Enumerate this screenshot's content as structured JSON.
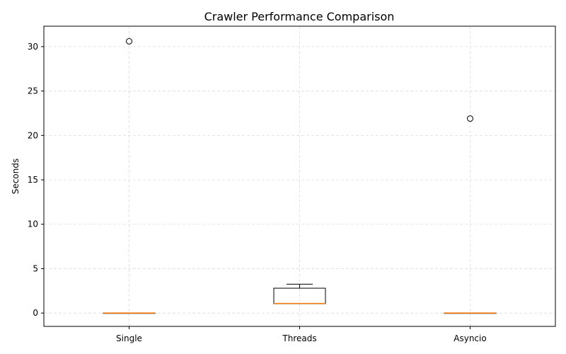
{
  "chart_data": {
    "type": "box",
    "title": "Crawler Performance Comparison",
    "xlabel": "",
    "ylabel": "Seconds",
    "ylim": [
      -1.5,
      32.3
    ],
    "yticks": [
      0,
      5,
      10,
      15,
      20,
      25,
      30
    ],
    "grid": true,
    "categories": [
      "Single",
      "Threads",
      "Asyncio"
    ],
    "boxes": [
      {
        "category": "Single",
        "whisker_low": 0.0,
        "q1": 0.0,
        "median": 0.0,
        "q3": 0.0,
        "whisker_high": 0.0,
        "outliers": [
          30.6
        ]
      },
      {
        "category": "Threads",
        "whisker_low": 1.05,
        "q1": 1.05,
        "median": 1.08,
        "q3": 2.8,
        "whisker_high": 3.25,
        "outliers": []
      },
      {
        "category": "Asyncio",
        "whisker_low": 0.0,
        "q1": 0.0,
        "median": 0.0,
        "q3": 0.0,
        "whisker_high": 0.0,
        "outliers": [
          21.9
        ]
      }
    ],
    "colors": {
      "box": "#000000",
      "median": "#ff7f0e",
      "grid": "#dddddd"
    }
  }
}
